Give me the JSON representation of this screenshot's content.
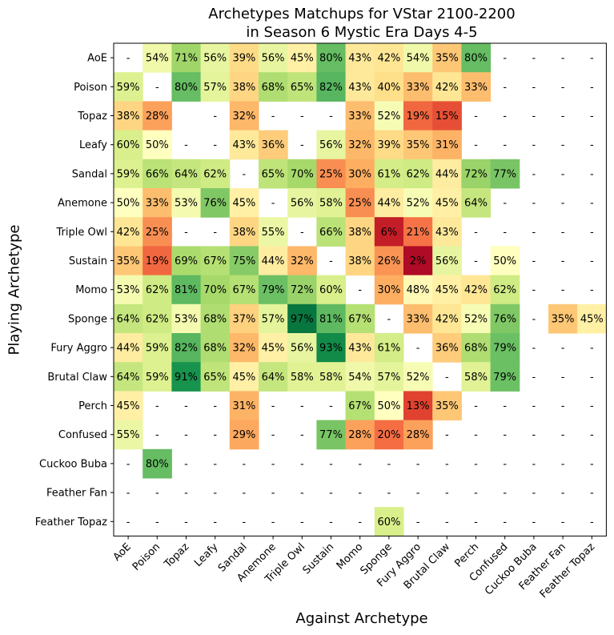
{
  "chart_data": {
    "type": "heatmap",
    "title": "Archetypes Matchups for VStar 2100-2200",
    "subtitle": "in Season 6 Mystic Era Days 4-5",
    "xlabel": "Against Archetype",
    "ylabel": "Playing Archetype",
    "missing_label": "-",
    "value_format": "percent",
    "colormap": "RdYlGn",
    "color_range": [
      0,
      100
    ],
    "rows": [
      "AoE",
      "Poison",
      "Topaz",
      "Leafy",
      "Sandal",
      "Anemone",
      "Triple Owl",
      "Sustain",
      "Momo",
      "Sponge",
      "Fury Aggro",
      "Brutal Claw",
      "Perch",
      "Confused",
      "Cuckoo Buba",
      "Feather Fan",
      "Feather Topaz"
    ],
    "columns": [
      "AoE",
      "Poison",
      "Topaz",
      "Leafy",
      "Sandal",
      "Anemone",
      "Triple Owl",
      "Sustain",
      "Momo",
      "Sponge",
      "Fury Aggro",
      "Brutal Claw",
      "Perch",
      "Confused",
      "Cuckoo Buba",
      "Feather Fan",
      "Feather Topaz"
    ],
    "values": [
      [
        null,
        54,
        71,
        56,
        39,
        56,
        45,
        80,
        43,
        42,
        54,
        35,
        80,
        null,
        null,
        null,
        null
      ],
      [
        59,
        null,
        80,
        57,
        38,
        68,
        65,
        82,
        43,
        40,
        33,
        42,
        33,
        null,
        null,
        null,
        null
      ],
      [
        38,
        28,
        "",
        null,
        32,
        null,
        null,
        null,
        33,
        52,
        19,
        15,
        null,
        null,
        null,
        null,
        null
      ],
      [
        60,
        50,
        null,
        null,
        43,
        36,
        null,
        56,
        32,
        39,
        35,
        31,
        null,
        null,
        null,
        null,
        null
      ],
      [
        59,
        66,
        64,
        62,
        null,
        65,
        70,
        25,
        30,
        61,
        62,
        44,
        72,
        77,
        null,
        null,
        null
      ],
      [
        50,
        33,
        53,
        76,
        45,
        null,
        56,
        58,
        25,
        44,
        52,
        45,
        64,
        null,
        null,
        null,
        null
      ],
      [
        42,
        25,
        null,
        null,
        38,
        55,
        null,
        66,
        38,
        6,
        21,
        43,
        null,
        null,
        null,
        null,
        null
      ],
      [
        35,
        19,
        69,
        67,
        75,
        44,
        32,
        null,
        38,
        26,
        2,
        56,
        null,
        50,
        null,
        null,
        null
      ],
      [
        53,
        62,
        81,
        70,
        67,
        79,
        72,
        60,
        null,
        30,
        48,
        45,
        42,
        62,
        null,
        null,
        null
      ],
      [
        64,
        62,
        53,
        68,
        37,
        57,
        97,
        81,
        67,
        null,
        33,
        42,
        52,
        76,
        null,
        35,
        45
      ],
      [
        44,
        59,
        82,
        68,
        32,
        45,
        56,
        93,
        43,
        61,
        null,
        36,
        68,
        79,
        null,
        null,
        null
      ],
      [
        64,
        59,
        91,
        65,
        45,
        64,
        58,
        58,
        54,
        57,
        52,
        null,
        58,
        79,
        null,
        null,
        null
      ],
      [
        45,
        null,
        null,
        null,
        31,
        null,
        null,
        null,
        67,
        50,
        13,
        35,
        null,
        null,
        null,
        null,
        null
      ],
      [
        55,
        null,
        null,
        null,
        29,
        null,
        null,
        77,
        28,
        20,
        28,
        null,
        null,
        null,
        null,
        null,
        null
      ],
      [
        null,
        80,
        null,
        null,
        null,
        null,
        null,
        null,
        null,
        null,
        null,
        null,
        null,
        null,
        null,
        null,
        null
      ],
      [
        null,
        null,
        null,
        null,
        null,
        null,
        null,
        null,
        null,
        null,
        null,
        null,
        null,
        null,
        null,
        null,
        null
      ],
      [
        null,
        null,
        null,
        null,
        null,
        null,
        null,
        null,
        null,
        60,
        null,
        null,
        null,
        null,
        null,
        null,
        null
      ]
    ]
  }
}
